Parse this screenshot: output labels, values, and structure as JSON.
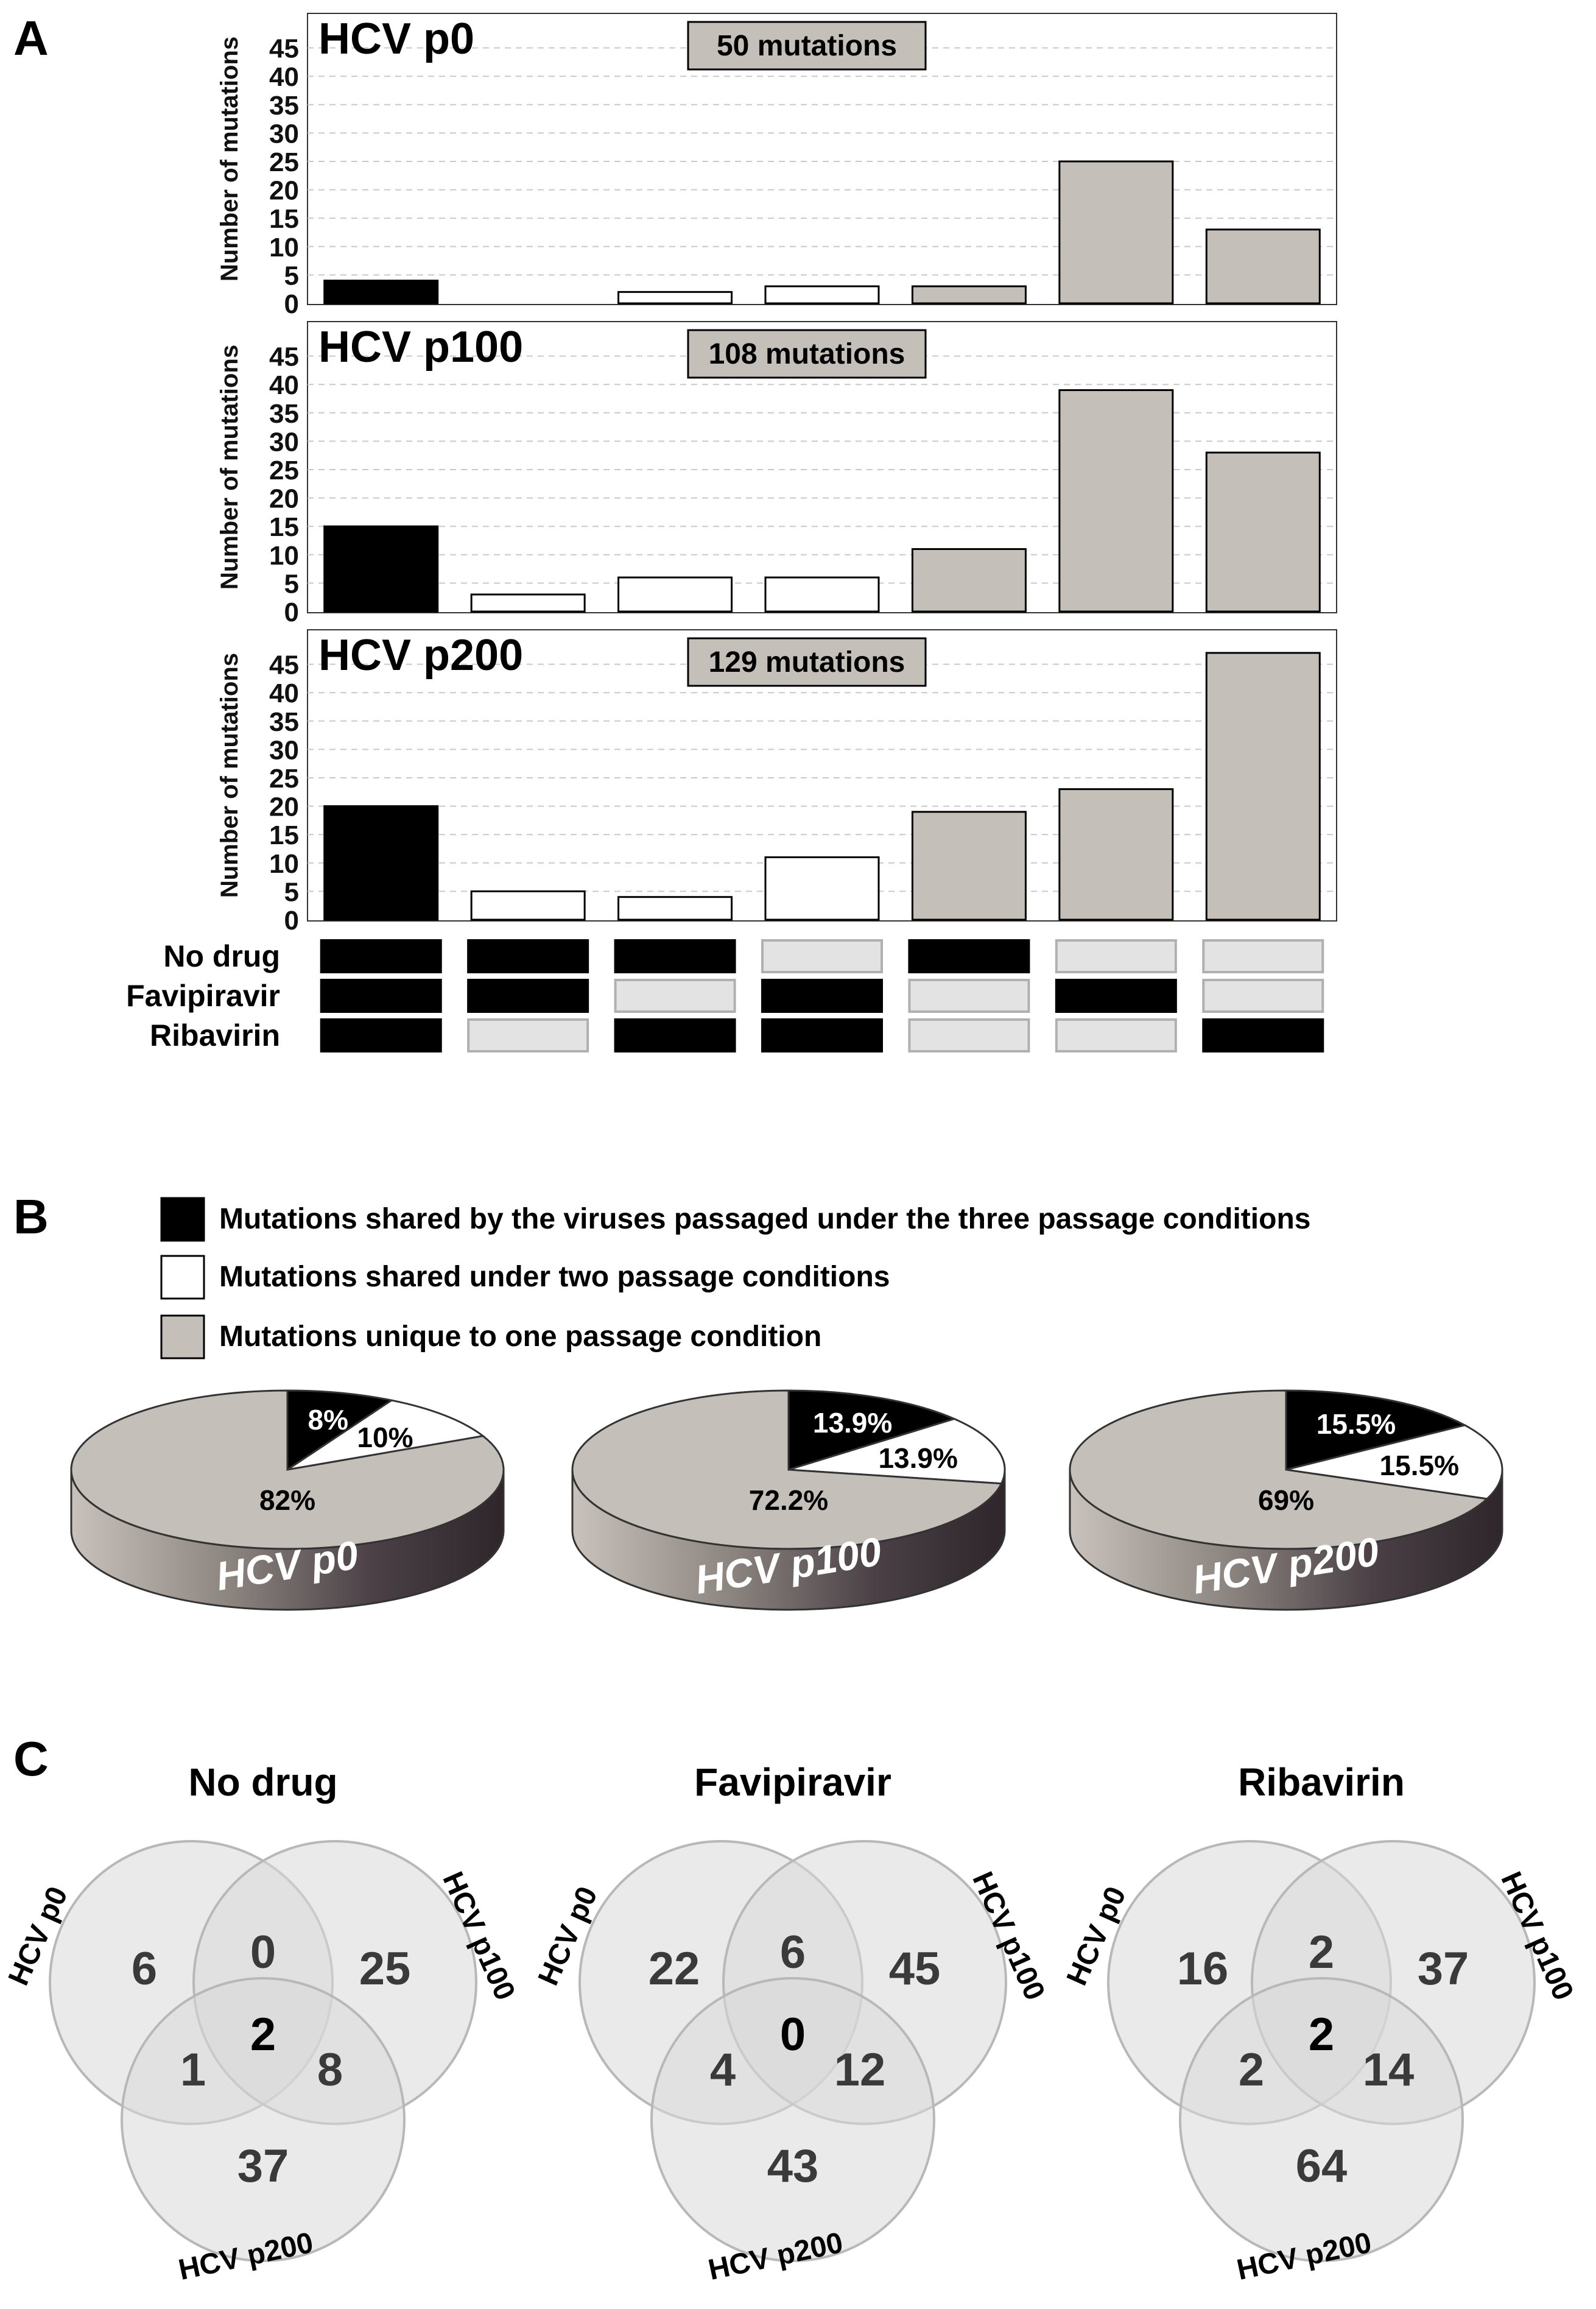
{
  "panels": {
    "A": "A",
    "B": "B",
    "C": "C"
  },
  "colors": {
    "shared_three": "#000000",
    "shared_two": "#ffffff",
    "unique_one": "#c5bfb9",
    "matrix_off": "#e3e3e3",
    "matrix_off_border": "#b0b0b0",
    "venn_fill": "#d8d8d8",
    "venn_stroke": "#b8b8b8",
    "pie_side_dark": "#3b3236",
    "pie_side_light": "#a9a29c"
  },
  "chart_data": [
    {
      "type": "bar",
      "title": "HCV p0",
      "badge": "50 mutations",
      "ylabel": "Number of mutations",
      "ylim": [
        0,
        50
      ],
      "yticks": [
        0,
        5,
        10,
        15,
        20,
        25,
        30,
        35,
        40,
        45
      ],
      "grid": true,
      "values": [
        4,
        0,
        2,
        3,
        3,
        25,
        13
      ],
      "categories": [
        "shared_three",
        "shared_two",
        "shared_two",
        "shared_two",
        "unique_one",
        "unique_one",
        "unique_one"
      ]
    },
    {
      "type": "bar",
      "title": "HCV p100",
      "badge": "108 mutations",
      "ylabel": "Number of mutations",
      "ylim": [
        0,
        50
      ],
      "yticks": [
        0,
        5,
        10,
        15,
        20,
        25,
        30,
        35,
        40,
        45
      ],
      "grid": true,
      "values": [
        15,
        3,
        6,
        6,
        11,
        39,
        28
      ],
      "categories": [
        "shared_three",
        "shared_two",
        "shared_two",
        "shared_two",
        "unique_one",
        "unique_one",
        "unique_one"
      ]
    },
    {
      "type": "bar",
      "title": "HCV p200",
      "badge": "129 mutations",
      "ylabel": "Number of mutations",
      "ylim": [
        0,
        50
      ],
      "yticks": [
        0,
        5,
        10,
        15,
        20,
        25,
        30,
        35,
        40,
        45
      ],
      "grid": true,
      "values": [
        20,
        5,
        4,
        11,
        19,
        23,
        47
      ],
      "categories": [
        "shared_three",
        "shared_two",
        "shared_two",
        "shared_two",
        "unique_one",
        "unique_one",
        "unique_one"
      ]
    },
    {
      "type": "pie",
      "title": "HCV p0",
      "slices": [
        {
          "label": "8%",
          "value": 8,
          "category": "shared_three"
        },
        {
          "label": "10%",
          "value": 10,
          "category": "shared_two"
        },
        {
          "label": "82%",
          "value": 82,
          "category": "unique_one"
        }
      ]
    },
    {
      "type": "pie",
      "title": "HCV p100",
      "slices": [
        {
          "label": "13.9%",
          "value": 13.9,
          "category": "shared_three"
        },
        {
          "label": "13.9%",
          "value": 13.9,
          "category": "shared_two"
        },
        {
          "label": "72.2%",
          "value": 72.2,
          "category": "unique_one"
        }
      ]
    },
    {
      "type": "pie",
      "title": "HCV p200",
      "slices": [
        {
          "label": "15.5%",
          "value": 15.5,
          "category": "shared_three"
        },
        {
          "label": "15.5%",
          "value": 15.5,
          "category": "shared_two"
        },
        {
          "label": "69%",
          "value": 69,
          "category": "unique_one"
        }
      ]
    }
  ],
  "matrix": {
    "rows": [
      {
        "label": "No drug",
        "cells": [
          1,
          1,
          1,
          0,
          1,
          0,
          0
        ]
      },
      {
        "label": "Favipiravir",
        "cells": [
          1,
          1,
          0,
          1,
          0,
          1,
          0
        ]
      },
      {
        "label": "Ribavirin",
        "cells": [
          1,
          0,
          1,
          1,
          0,
          0,
          1
        ]
      }
    ]
  },
  "legend": [
    {
      "category": "shared_three",
      "label": "Mutations shared by the viruses passaged under the three passage conditions"
    },
    {
      "category": "shared_two",
      "label": "Mutations shared under two passage conditions"
    },
    {
      "category": "unique_one",
      "label": "Mutations unique to one passage condition"
    }
  ],
  "venn": [
    {
      "title": "No drug",
      "set_labels": [
        "HCV p0",
        "HCV p100",
        "HCV p200"
      ],
      "regions": {
        "p0_only": "6",
        "p0_p100": "0",
        "p100_only": "25",
        "all": "2",
        "p0_p200": "1",
        "p100_p200": "8",
        "p200_only": "37"
      }
    },
    {
      "title": "Favipiravir",
      "set_labels": [
        "HCV p0",
        "HCV p100",
        "HCV p200"
      ],
      "regions": {
        "p0_only": "22",
        "p0_p100": "6",
        "p100_only": "45",
        "all": "0",
        "p0_p200": "4",
        "p100_p200": "12",
        "p200_only": "43"
      }
    },
    {
      "title": "Ribavirin",
      "set_labels": [
        "HCV p0",
        "HCV p100",
        "HCV p200"
      ],
      "regions": {
        "p0_only": "16",
        "p0_p100": "2",
        "p100_only": "37",
        "all": "2",
        "p0_p200": "2",
        "p100_p200": "14",
        "p200_only": "64"
      }
    }
  ]
}
